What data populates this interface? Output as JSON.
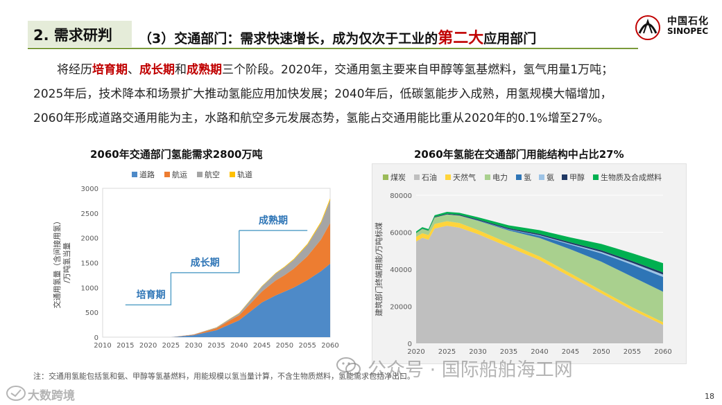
{
  "header": {
    "section_label": "2. 需求研判",
    "title_prefix": "（3）交通部门：需求快速增长，成为仅次于工业的",
    "title_highlight": "第二大",
    "title_suffix": "应用部门",
    "logo_cn": "中国石化",
    "logo_en": "SINOPEC"
  },
  "paragraph": {
    "l1_a": "将经历",
    "l1_b": "培育期",
    "l1_c": "、",
    "l1_d": "成长期",
    "l1_e": "和",
    "l1_f": "成熟期",
    "l1_g": "三个阶段。2020年，交通用氢主要来自甲醇等氢基燃料，氢气用量1万吨；",
    "l2": "2025年后，技术降本和场景扩大推动氢能应用加快发展；2040年后，低碳氢能步入成熟，用氢规模大幅增加，",
    "l3": "2060年形成道路交通用能为主，水路和航空多元发展态势，氢能占交通用能比重从2020年的0.1%增至27%。"
  },
  "chart_data": [
    {
      "type": "area",
      "stacked": true,
      "title": "2060年交通部门氢能需求2800万吨",
      "ylabel_line1": "交通用氢量（含间接用氢）",
      "ylabel_line2": "/万吨氢当量",
      "ylim": [
        0,
        3000
      ],
      "yticks": [
        0,
        500,
        1000,
        1500,
        2000,
        2500,
        3000
      ],
      "xticks": [
        2010,
        2015,
        2020,
        2025,
        2030,
        2035,
        2040,
        2045,
        2050,
        2055,
        2060
      ],
      "x": [
        2025,
        2030,
        2035,
        2038,
        2040,
        2045,
        2048,
        2050,
        2052,
        2055,
        2058,
        2060
      ],
      "series": [
        {
          "name": "道路",
          "color": "#4e8ac8",
          "values": [
            0,
            40,
            140,
            260,
            340,
            700,
            840,
            920,
            1000,
            1150,
            1330,
            1480
          ]
        },
        {
          "name": "航运",
          "color": "#ed7d31",
          "values": [
            0,
            10,
            40,
            80,
            100,
            220,
            300,
            330,
            380,
            480,
            640,
            820
          ]
        },
        {
          "name": "航空",
          "color": "#a5a5a5",
          "values": [
            0,
            5,
            15,
            30,
            40,
            100,
            140,
            160,
            180,
            230,
            330,
            460
          ]
        },
        {
          "name": "轨道",
          "color": "#ffc000",
          "values": [
            0,
            1,
            3,
            5,
            6,
            10,
            12,
            14,
            16,
            20,
            30,
            40
          ]
        }
      ],
      "phases": [
        {
          "label": "培育期",
          "from": 2015,
          "to": 2025,
          "level": 650
        },
        {
          "label": "成长期",
          "from": 2025,
          "to": 2040,
          "level": 1300
        },
        {
          "label": "成熟期",
          "from": 2040,
          "to": 2055,
          "level": 2150
        }
      ]
    },
    {
      "type": "area",
      "stacked": true,
      "title": "2060年氢能在交通部门用能结构中占比27%",
      "ylabel": "建筑部门终端用能/万吨标煤",
      "ylim": [
        0,
        80000
      ],
      "yticks": [
        0,
        20000,
        40000,
        60000,
        80000
      ],
      "xticks": [
        2020,
        2025,
        2030,
        2035,
        2040,
        2045,
        2050,
        2055,
        2060
      ],
      "x": [
        2020,
        2021,
        2022,
        2023,
        2025,
        2027,
        2030,
        2035,
        2040,
        2045,
        2050,
        2055,
        2060
      ],
      "series": [
        {
          "name": "煤炭",
          "color": "#9bbb59",
          "values": [
            0,
            0,
            0,
            0,
            0,
            0,
            0,
            0,
            0,
            0,
            0,
            0,
            0
          ]
        },
        {
          "name": "石油",
          "color": "#bfbfbf",
          "values": [
            55000,
            57000,
            56000,
            62000,
            63500,
            62500,
            59000,
            52000,
            45000,
            36000,
            27000,
            18000,
            10000
          ]
        },
        {
          "name": "天然气",
          "color": "#ffd43b",
          "values": [
            2500,
            2500,
            2500,
            2500,
            2500,
            2500,
            2200,
            2000,
            1900,
            1800,
            1600,
            1500,
            1400
          ]
        },
        {
          "name": "电力",
          "color": "#a9d08e",
          "values": [
            2000,
            2300,
            2300,
            3500,
            3600,
            4000,
            5000,
            7000,
            10000,
            13000,
            15500,
            16500,
            16500
          ]
        },
        {
          "name": "氢",
          "color": "#2e75b6",
          "values": [
            0,
            0,
            0,
            0,
            10,
            50,
            200,
            500,
            1200,
            2500,
            4500,
            6500,
            8000
          ]
        },
        {
          "name": "氨",
          "color": "#9dc3e6",
          "values": [
            0,
            0,
            0,
            0,
            0,
            10,
            50,
            150,
            300,
            500,
            800,
            1000,
            1300
          ]
        },
        {
          "name": "甲醇",
          "color": "#203864",
          "values": [
            100,
            150,
            150,
            300,
            400,
            450,
            500,
            600,
            700,
            800,
            900,
            1000,
            1100
          ]
        },
        {
          "name": "生物质及合成燃料",
          "color": "#00b050",
          "values": [
            800,
            800,
            800,
            900,
            1000,
            1000,
            1200,
            1500,
            2000,
            2600,
            3400,
            4200,
            5000
          ]
        }
      ]
    }
  ],
  "footer": {
    "note": "注：交通用氢能包括氢和氨、甲醇等氢基燃料，用能规模以氢当量计算，不含生物质燃料，氢能需求包括净出口。",
    "page": "18",
    "watermark1": "公众号 · 国际船舶海工网",
    "watermark2": "大数跨境"
  }
}
